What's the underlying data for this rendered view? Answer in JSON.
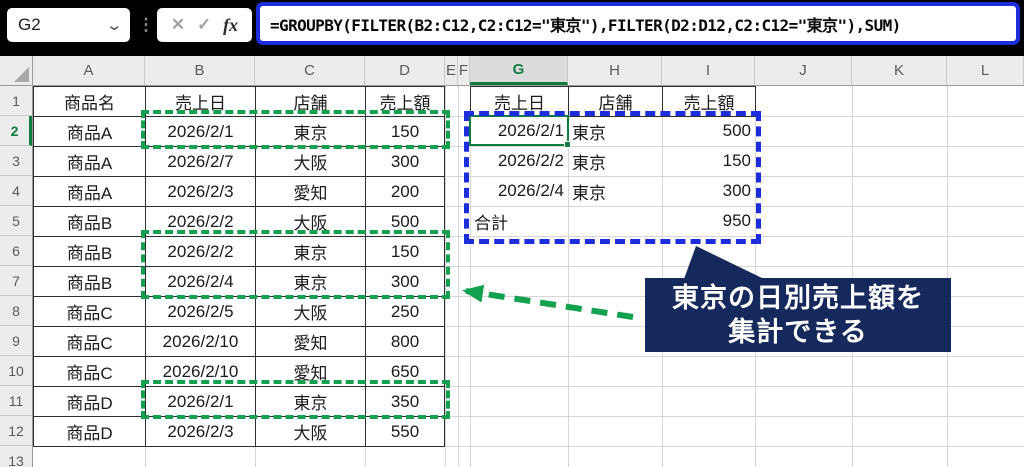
{
  "name_box": {
    "value": "G2"
  },
  "formula_bar": {
    "formula": "=GROUPBY(FILTER(B2:C12,C2:C12=\"東京\"),FILTER(D2:D12,C2:C12=\"東京\"),SUM)",
    "cancel_label": "✕",
    "enter_label": "✓",
    "fx_label": "fx"
  },
  "grid": {
    "column_headers": [
      "A",
      "B",
      "C",
      "D",
      "E",
      "F",
      "G",
      "H",
      "I",
      "J",
      "K",
      "L"
    ],
    "row_headers": [
      "1",
      "2",
      "3",
      "4",
      "5",
      "6",
      "7",
      "8",
      "9",
      "10",
      "11",
      "12",
      "13"
    ],
    "selected_column": "G",
    "selected_row": "2"
  },
  "source_table": {
    "headers": [
      "商品名",
      "売上日",
      "店舗",
      "売上額"
    ],
    "rows": [
      [
        "商品A",
        "2026/2/1",
        "東京",
        "150"
      ],
      [
        "商品A",
        "2026/2/7",
        "大阪",
        "300"
      ],
      [
        "商品A",
        "2026/2/3",
        "愛知",
        "200"
      ],
      [
        "商品B",
        "2026/2/2",
        "大阪",
        "500"
      ],
      [
        "商品B",
        "2026/2/2",
        "東京",
        "150"
      ],
      [
        "商品B",
        "2026/2/4",
        "東京",
        "300"
      ],
      [
        "商品C",
        "2026/2/5",
        "大阪",
        "250"
      ],
      [
        "商品C",
        "2026/2/10",
        "愛知",
        "800"
      ],
      [
        "商品C",
        "2026/2/10",
        "愛知",
        "650"
      ],
      [
        "商品D",
        "2026/2/1",
        "東京",
        "350"
      ],
      [
        "商品D",
        "2026/2/3",
        "大阪",
        "550"
      ]
    ]
  },
  "result_table": {
    "headers": [
      "売上日",
      "店舗",
      "売上額"
    ],
    "rows": [
      [
        "2026/2/1",
        "東京",
        "500"
      ],
      [
        "2026/2/2",
        "東京",
        "150"
      ],
      [
        "2026/2/4",
        "東京",
        "300"
      ],
      [
        "合計",
        "",
        "950"
      ]
    ],
    "aligns": [
      [
        "right",
        "left",
        "right"
      ],
      [
        "right",
        "left",
        "right"
      ],
      [
        "right",
        "left",
        "right"
      ],
      [
        "left",
        "left",
        "right"
      ]
    ]
  },
  "callout": {
    "line1": "東京の日別売上額を",
    "line2": "集計できる"
  },
  "colors": {
    "excel_green": "#107C41",
    "highlight_green": "#13A050",
    "highlight_blue": "#1C2EDC",
    "callout_navy": "#16295C"
  }
}
